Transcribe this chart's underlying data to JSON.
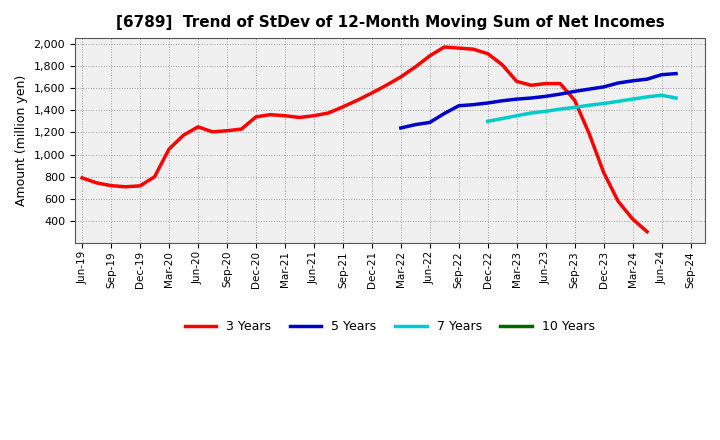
{
  "title": "[6789]  Trend of StDev of 12-Month Moving Sum of Net Incomes",
  "ylabel": "Amount (million yen)",
  "background_color": "#ffffff",
  "grid_color": "#999999",
  "ylim": [
    200,
    2050
  ],
  "yticks": [
    400,
    600,
    800,
    1000,
    1200,
    1400,
    1600,
    1800,
    2000
  ],
  "series": {
    "3 Years": {
      "color": "#ff0000",
      "x": [
        0,
        1,
        2,
        3,
        4,
        5,
        6,
        7,
        8,
        9,
        10,
        11,
        12,
        13,
        14,
        15,
        16,
        17,
        18,
        19,
        20,
        21,
        22,
        23,
        24,
        25,
        26,
        27,
        28,
        29,
        30,
        31,
        32,
        33,
        34,
        35,
        36,
        37,
        38,
        39
      ],
      "y": [
        790,
        745,
        720,
        710,
        718,
        800,
        1050,
        1175,
        1250,
        1205,
        1215,
        1230,
        1340,
        1360,
        1350,
        1335,
        1350,
        1375,
        1430,
        1490,
        1555,
        1625,
        1700,
        1790,
        1890,
        1970,
        1960,
        1950,
        1910,
        1810,
        1660,
        1625,
        1640,
        1640,
        1490,
        1190,
        840,
        580,
        420,
        305
      ]
    },
    "5 Years": {
      "color": "#0000cc",
      "x": [
        22,
        23,
        24,
        25,
        26,
        27,
        28,
        29,
        30,
        31,
        32,
        33,
        34,
        35,
        36,
        37,
        38,
        39,
        40,
        41
      ],
      "y": [
        1240,
        1270,
        1290,
        1370,
        1440,
        1450,
        1465,
        1485,
        1500,
        1510,
        1525,
        1545,
        1570,
        1590,
        1610,
        1645,
        1665,
        1680,
        1720,
        1730
      ]
    },
    "7 Years": {
      "color": "#00cccc",
      "x": [
        28,
        29,
        30,
        31,
        32,
        33,
        34,
        35,
        36,
        37,
        38,
        39,
        40,
        41
      ],
      "y": [
        1300,
        1325,
        1350,
        1375,
        1390,
        1410,
        1425,
        1445,
        1460,
        1480,
        1500,
        1520,
        1535,
        1510
      ]
    },
    "10 Years": {
      "color": "#006600",
      "x": [],
      "y": []
    }
  },
  "xtick_labels": [
    "Jun-19",
    "Sep-19",
    "Dec-19",
    "Mar-20",
    "Jun-20",
    "Sep-20",
    "Dec-20",
    "Mar-21",
    "Jun-21",
    "Sep-21",
    "Dec-21",
    "Mar-22",
    "Jun-22",
    "Sep-22",
    "Dec-22",
    "Mar-23",
    "Jun-23",
    "Sep-23",
    "Dec-23",
    "Mar-24",
    "Jun-24",
    "Sep-24"
  ],
  "xtick_positions": [
    0,
    2,
    4,
    6,
    8,
    10,
    12,
    14,
    16,
    18,
    20,
    22,
    24,
    26,
    28,
    30,
    32,
    34,
    36,
    38,
    40,
    42
  ]
}
